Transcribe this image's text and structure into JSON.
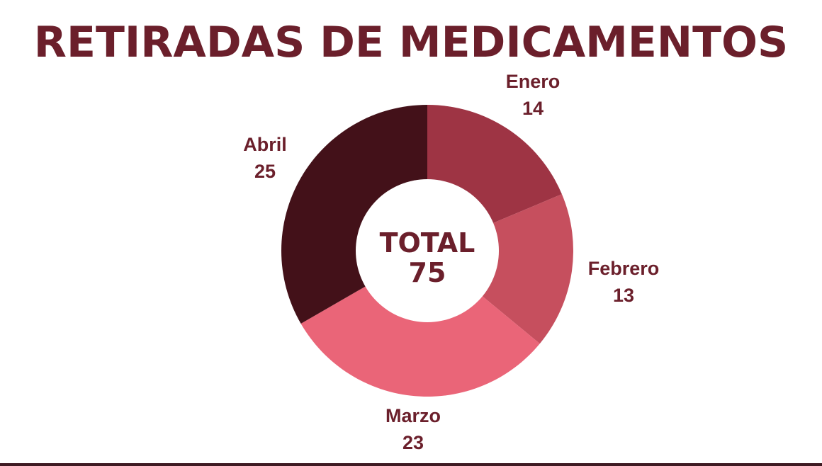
{
  "title": "RETIRADAS DE MEDICAMENTOS",
  "center": {
    "label": "TOTAL",
    "value": "75"
  },
  "colors": {
    "title": "#6b1f2b",
    "labels": "#6b1f2b"
  },
  "chart_data": {
    "type": "pie",
    "donut": true,
    "title": "RETIRADAS DE MEDICAMENTOS",
    "categories": [
      "Enero",
      "Febrero",
      "Marzo",
      "Abril"
    ],
    "values": [
      14,
      13,
      23,
      25
    ],
    "total": 75,
    "colors": [
      "#9e3444",
      "#c64f5e",
      "#ea6578",
      "#431119"
    ],
    "start": "top",
    "direction": "clockwise"
  }
}
